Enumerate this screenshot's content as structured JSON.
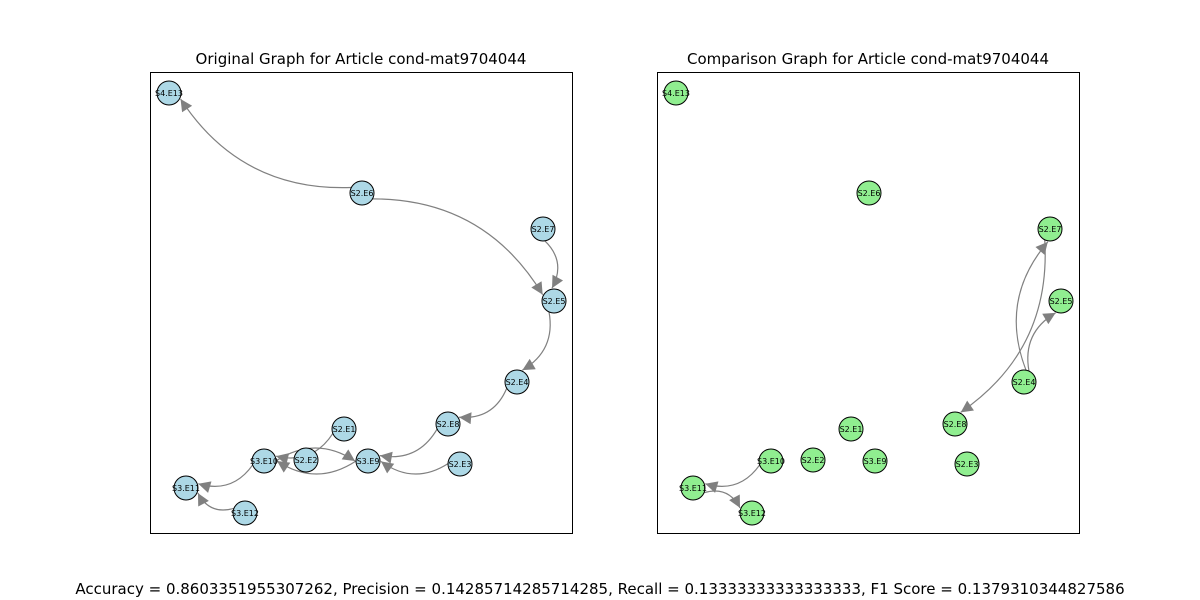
{
  "figure": {
    "footer_text": "Accuracy = 0.8603351955307262, Precision = 0.14285714285714285, Recall = 0.13333333333333333, F1 Score = 0.1379310344827586"
  },
  "panels": [
    {
      "title": "Original Graph for Article cond-mat9704044",
      "node_color": "#add8e6",
      "edges": [
        [
          "S2.E6",
          "S4.E13"
        ],
        [
          "S2.E6",
          "S2.E5"
        ],
        [
          "S2.E7",
          "S2.E5"
        ],
        [
          "S2.E5",
          "S2.E4"
        ],
        [
          "S2.E4",
          "S2.E8"
        ],
        [
          "S2.E8",
          "S3.E9"
        ],
        [
          "S2.E3",
          "S3.E9"
        ],
        [
          "S3.E9",
          "S3.E10"
        ],
        [
          "S3.E10",
          "S3.E9"
        ],
        [
          "S2.E1",
          "S3.E10"
        ],
        [
          "S3.E10",
          "S3.E11"
        ],
        [
          "S3.E12",
          "S3.E11"
        ]
      ]
    },
    {
      "title": "Comparison Graph for Article cond-mat9704044",
      "node_color": "#90ee90",
      "edges": [
        [
          "S2.E7",
          "S2.E8"
        ],
        [
          "S2.E4",
          "S2.E7"
        ],
        [
          "S2.E4",
          "S2.E5"
        ],
        [
          "S3.E10",
          "S3.E11"
        ],
        [
          "S3.E11",
          "S3.E12"
        ]
      ]
    }
  ],
  "nodes": [
    "S4.E13",
    "S2.E6",
    "S2.E7",
    "S2.E5",
    "S2.E4",
    "S2.E8",
    "S2.E1",
    "S3.E10",
    "S2.E2",
    "S3.E9",
    "S2.E3",
    "S3.E11",
    "S3.E12"
  ],
  "edge_color": "#808080",
  "node_edge_color": "#000000"
}
